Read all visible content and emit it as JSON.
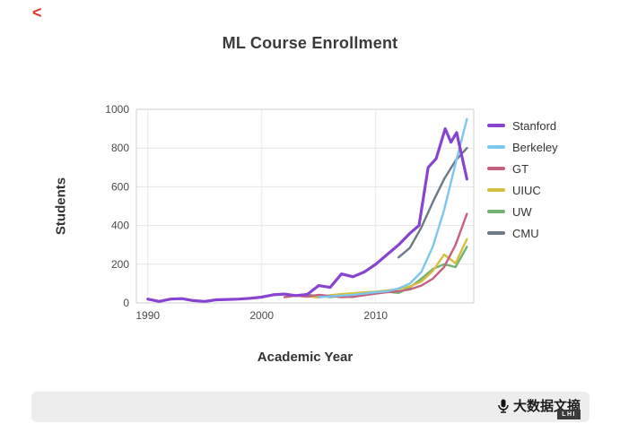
{
  "page": {
    "back_chevron": "<"
  },
  "watermark": {
    "brand": "大数据文摘",
    "badge": "LHI",
    "icon": "microphone-icon"
  },
  "colors": {
    "accent_back": "#e0392b",
    "bar_background": "#ededed"
  },
  "chart_data": {
    "type": "line",
    "title": "ML Course Enrollment",
    "xlabel": "Academic Year",
    "ylabel": "Students",
    "xlim": [
      1989,
      2018.6
    ],
    "ylim": [
      0,
      1000
    ],
    "x_ticks": [
      1990,
      2000,
      2010
    ],
    "y_ticks": [
      0,
      200,
      400,
      600,
      800,
      1000
    ],
    "grid": true,
    "legend_position": "right",
    "series": [
      {
        "name": "Stanford",
        "color": "#8843d0",
        "width": 3.2,
        "points": [
          [
            1990,
            20
          ],
          [
            1991,
            8
          ],
          [
            1992,
            20
          ],
          [
            1993,
            22
          ],
          [
            1994,
            12
          ],
          [
            1995,
            8
          ],
          [
            1996,
            16
          ],
          [
            1997,
            18
          ],
          [
            1998,
            20
          ],
          [
            1999,
            24
          ],
          [
            2000,
            30
          ],
          [
            2001,
            42
          ],
          [
            2002,
            46
          ],
          [
            2003,
            38
          ],
          [
            2004,
            44
          ],
          [
            2005,
            90
          ],
          [
            2006,
            80
          ],
          [
            2007,
            150
          ],
          [
            2008,
            135
          ],
          [
            2009,
            160
          ],
          [
            2010,
            200
          ],
          [
            2011,
            250
          ],
          [
            2012,
            300
          ],
          [
            2013,
            360
          ],
          [
            2013.8,
            400
          ],
          [
            2014.6,
            700
          ],
          [
            2015.3,
            745
          ],
          [
            2016.1,
            900
          ],
          [
            2016.6,
            830
          ],
          [
            2017.1,
            880
          ],
          [
            2018,
            640
          ]
        ]
      },
      {
        "name": "Berkeley",
        "color": "#7cc7f2",
        "width": 2.4,
        "points": [
          [
            2005,
            30
          ],
          [
            2006,
            34
          ],
          [
            2007,
            38
          ],
          [
            2008,
            42
          ],
          [
            2009,
            48
          ],
          [
            2010,
            55
          ],
          [
            2011,
            60
          ],
          [
            2012,
            75
          ],
          [
            2013,
            100
          ],
          [
            2014,
            160
          ],
          [
            2015,
            290
          ],
          [
            2016,
            480
          ],
          [
            2017,
            720
          ],
          [
            2018,
            950
          ]
        ]
      },
      {
        "name": "GT",
        "color": "#c4617f",
        "width": 2.4,
        "points": [
          [
            2002,
            30
          ],
          [
            2003,
            38
          ],
          [
            2004,
            32
          ],
          [
            2005,
            42
          ],
          [
            2006,
            36
          ],
          [
            2007,
            30
          ],
          [
            2008,
            32
          ],
          [
            2009,
            40
          ],
          [
            2010,
            48
          ],
          [
            2011,
            55
          ],
          [
            2012,
            60
          ],
          [
            2013,
            70
          ],
          [
            2014,
            90
          ],
          [
            2015,
            125
          ],
          [
            2016,
            185
          ],
          [
            2017,
            300
          ],
          [
            2018,
            460
          ]
        ]
      },
      {
        "name": "UIUC",
        "color": "#d6bf3f",
        "width": 2.4,
        "points": [
          [
            2004,
            35
          ],
          [
            2005,
            28
          ],
          [
            2006,
            40
          ],
          [
            2007,
            46
          ],
          [
            2008,
            50
          ],
          [
            2009,
            55
          ],
          [
            2010,
            58
          ],
          [
            2011,
            65
          ],
          [
            2012,
            72
          ],
          [
            2013,
            85
          ],
          [
            2014,
            110
          ],
          [
            2015,
            165
          ],
          [
            2016,
            250
          ],
          [
            2017,
            205
          ],
          [
            2018,
            330
          ]
        ]
      },
      {
        "name": "UW",
        "color": "#72b372",
        "width": 2.4,
        "points": [
          [
            2004,
            42
          ],
          [
            2005,
            36
          ],
          [
            2006,
            30
          ],
          [
            2007,
            36
          ],
          [
            2008,
            30
          ],
          [
            2009,
            42
          ],
          [
            2010,
            50
          ],
          [
            2011,
            58
          ],
          [
            2012,
            52
          ],
          [
            2013,
            80
          ],
          [
            2014,
            125
          ],
          [
            2015,
            175
          ],
          [
            2016,
            200
          ],
          [
            2017,
            185
          ],
          [
            2018,
            290
          ]
        ]
      },
      {
        "name": "CMU",
        "color": "#6e7987",
        "width": 2.4,
        "points": [
          [
            2012,
            235
          ],
          [
            2013,
            285
          ],
          [
            2014,
            390
          ],
          [
            2015,
            520
          ],
          [
            2016,
            640
          ],
          [
            2017,
            735
          ],
          [
            2018,
            800
          ]
        ]
      }
    ]
  }
}
